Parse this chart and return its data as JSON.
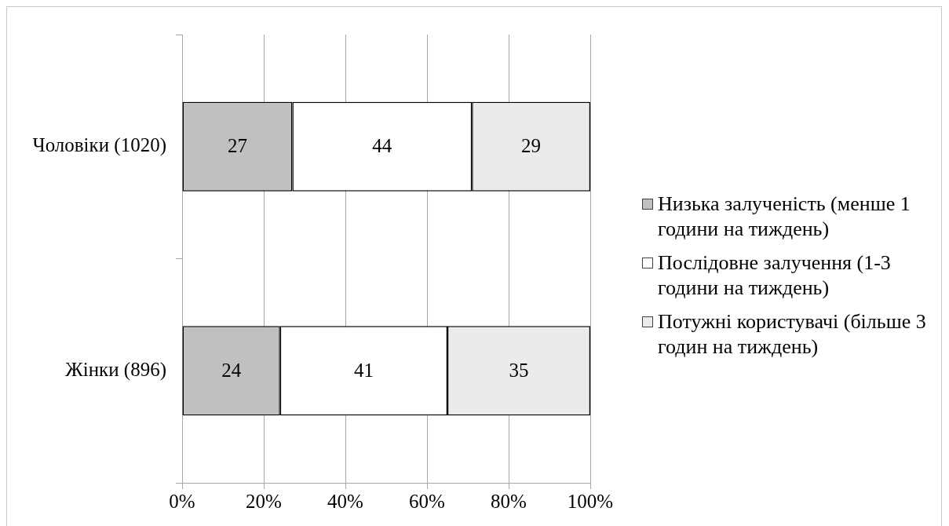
{
  "chart_data": {
    "type": "bar",
    "orientation": "horizontal",
    "stacked": true,
    "categories": [
      "Чоловіки (1020)",
      "Жінки (896)"
    ],
    "series": [
      {
        "name": "Низька залученість (менше 1 години на тиждень)",
        "color": "#c0c0c0",
        "values": [
          27,
          24
        ]
      },
      {
        "name": "Послідовне залучення (1-3 години на тиждень)",
        "color": "#ffffff",
        "values": [
          44,
          41
        ]
      },
      {
        "name": "Потужні користувачі (більше 3 годин на тиждень)",
        "color": "#ebebeb",
        "values": [
          29,
          35
        ]
      }
    ],
    "xlim": [
      0,
      100
    ],
    "xticks": [
      {
        "value": 0,
        "label": "0%"
      },
      {
        "value": 20,
        "label": "20%"
      },
      {
        "value": 40,
        "label": "40%"
      },
      {
        "value": 60,
        "label": "60%"
      },
      {
        "value": 80,
        "label": "80%"
      },
      {
        "value": 100,
        "label": "100%"
      }
    ],
    "grid": "x",
    "legend": "right",
    "data_labels": true
  }
}
